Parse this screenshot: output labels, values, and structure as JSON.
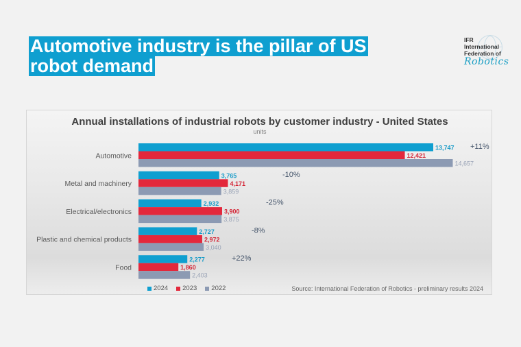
{
  "slide": {
    "title_lines": [
      "Automotive industry is the pillar of US",
      "robot demand"
    ],
    "logo": {
      "line1": "IFR",
      "line2": "International",
      "line3": "Federation of",
      "script": "Robotics"
    }
  },
  "chart_data": {
    "type": "bar",
    "orientation": "horizontal",
    "title": "Annual installations of industrial robots by customer industry - United States",
    "subtitle": "units",
    "xlabel": "",
    "ylabel": "",
    "grid": false,
    "categories": [
      "Automotive",
      "Metal and machinery",
      "Electrical/electronics",
      "Plastic and chemical products",
      "Food"
    ],
    "series": [
      {
        "name": "2024",
        "color": "#0f9fd0",
        "label_color": "#1a9cc8",
        "values": [
          13747,
          3765,
          2932,
          2727,
          2277
        ],
        "labels": [
          "13,747",
          "3,765",
          "2,932",
          "2,727",
          "2,277"
        ]
      },
      {
        "name": "2023",
        "color": "#e3283c",
        "label_color": "#d42838",
        "values": [
          12421,
          4171,
          3900,
          2972,
          1860
        ],
        "labels": [
          "12,421",
          "4,171",
          "3,900",
          "2,972",
          "1,860"
        ]
      },
      {
        "name": "2022",
        "color": "#8c9ab3",
        "label_color": "#98a2b5",
        "values": [
          14657,
          3859,
          3875,
          3040,
          2403
        ],
        "labels": [
          "14,657",
          "3,859",
          "3,875",
          "3,040",
          "2,403"
        ]
      }
    ],
    "growth_annotations": [
      "+11%",
      "-10%",
      "-25%",
      "-8%",
      "+22%"
    ],
    "xlim": [
      0,
      16000
    ],
    "legend_position": "bottom-left",
    "source": "Source: International Federation of Robotics - preliminary results 2024"
  }
}
